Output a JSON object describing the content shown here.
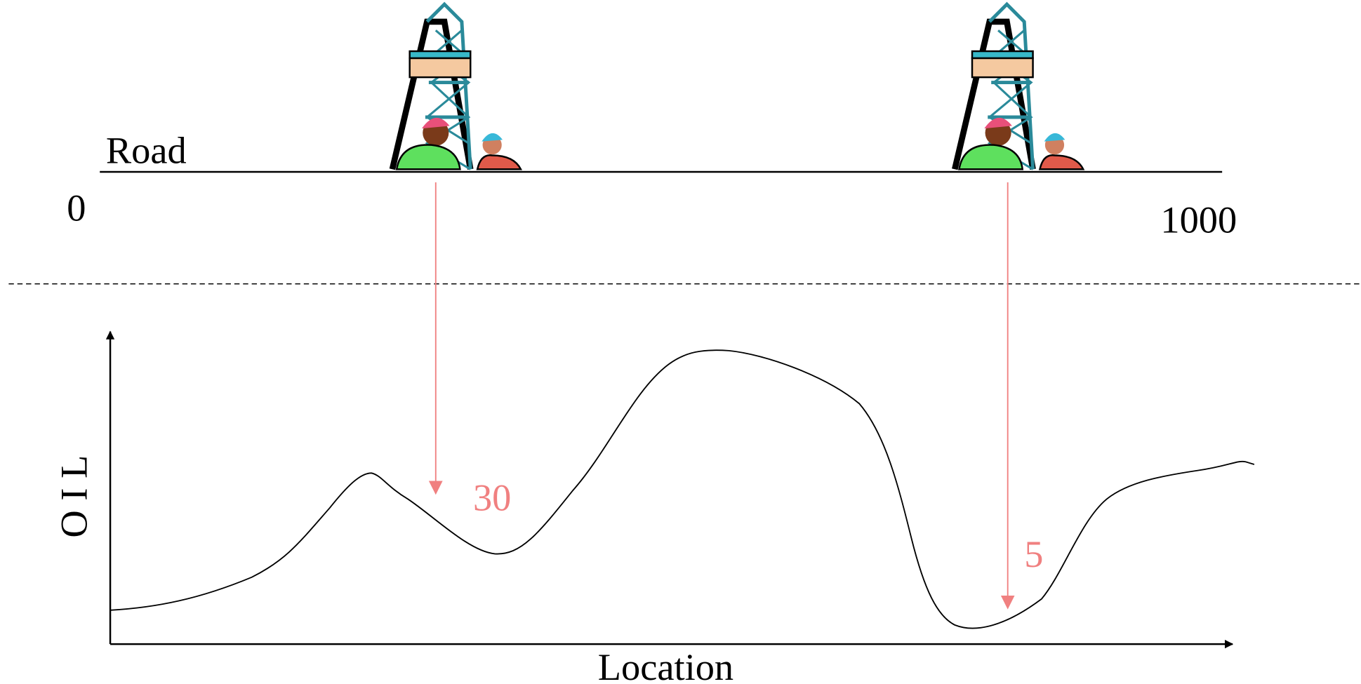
{
  "road_label": "Road",
  "scale": {
    "start": "0",
    "end": "1000"
  },
  "axes": {
    "y_label": "O I L",
    "x_label": "Location"
  },
  "wells": [
    {
      "value": 30
    },
    {
      "value": 5
    }
  ]
}
